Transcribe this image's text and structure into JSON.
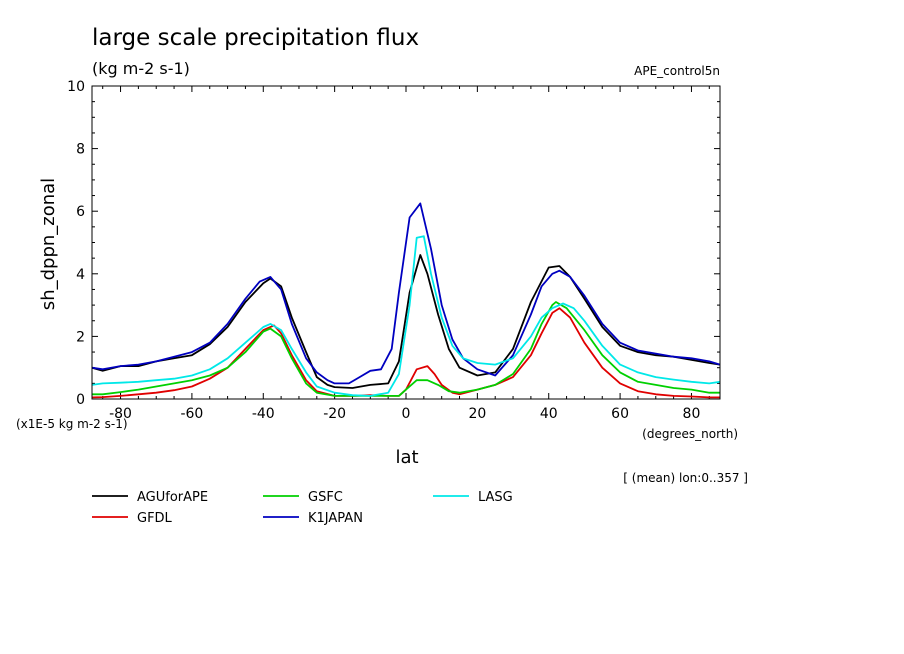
{
  "chart_data": {
    "type": "line",
    "title": "large scale precipitation flux",
    "subtitle": "(kg m-2 s-1)",
    "experiment": "APE_control5n",
    "ylabel": "sh_dppn_zonal",
    "y_scale_note": "(x1E-5 kg m-2 s-1)",
    "xlabel": "lat",
    "x_units": "(degrees_north)",
    "averaging_note": "[ (mean) lon:0..357 ]",
    "xlim": [
      -88,
      88
    ],
    "ylim": [
      0,
      10
    ],
    "xticks": [
      -80,
      -60,
      -40,
      -20,
      0,
      20,
      40,
      60,
      80
    ],
    "yticks": [
      0,
      2,
      4,
      6,
      8,
      10
    ],
    "x_tick_labels": [
      "-80",
      "-60",
      "-40",
      "-20",
      "0",
      "20",
      "40",
      "60",
      "80"
    ],
    "y_tick_labels": [
      "0",
      "2",
      "4",
      "6",
      "8",
      "10"
    ],
    "grid": false,
    "legend_position": "bottom",
    "series": [
      {
        "name": "AGUforAPE",
        "color": "#000000",
        "points": [
          [
            -88,
            1.0
          ],
          [
            -85,
            0.9
          ],
          [
            -80,
            1.05
          ],
          [
            -75,
            1.05
          ],
          [
            -70,
            1.2
          ],
          [
            -65,
            1.3
          ],
          [
            -60,
            1.4
          ],
          [
            -55,
            1.75
          ],
          [
            -50,
            2.3
          ],
          [
            -45,
            3.1
          ],
          [
            -40,
            3.7
          ],
          [
            -38,
            3.85
          ],
          [
            -35,
            3.6
          ],
          [
            -32,
            2.6
          ],
          [
            -28,
            1.5
          ],
          [
            -25,
            0.7
          ],
          [
            -22,
            0.45
          ],
          [
            -20,
            0.38
          ],
          [
            -15,
            0.35
          ],
          [
            -10,
            0.45
          ],
          [
            -5,
            0.5
          ],
          [
            -2,
            1.2
          ],
          [
            1,
            3.4
          ],
          [
            4,
            4.6
          ],
          [
            6,
            4.0
          ],
          [
            9,
            2.7
          ],
          [
            12,
            1.6
          ],
          [
            15,
            1.0
          ],
          [
            20,
            0.75
          ],
          [
            25,
            0.85
          ],
          [
            30,
            1.6
          ],
          [
            35,
            3.1
          ],
          [
            40,
            4.2
          ],
          [
            43,
            4.25
          ],
          [
            46,
            3.9
          ],
          [
            50,
            3.2
          ],
          [
            55,
            2.3
          ],
          [
            60,
            1.7
          ],
          [
            65,
            1.5
          ],
          [
            70,
            1.4
          ],
          [
            75,
            1.35
          ],
          [
            80,
            1.25
          ],
          [
            85,
            1.15
          ],
          [
            88,
            1.1
          ]
        ]
      },
      {
        "name": "GFDL",
        "color": "#e00000",
        "points": [
          [
            -88,
            0.05
          ],
          [
            -85,
            0.06
          ],
          [
            -80,
            0.1
          ],
          [
            -75,
            0.15
          ],
          [
            -70,
            0.2
          ],
          [
            -65,
            0.28
          ],
          [
            -60,
            0.4
          ],
          [
            -55,
            0.65
          ],
          [
            -50,
            1.0
          ],
          [
            -45,
            1.6
          ],
          [
            -40,
            2.2
          ],
          [
            -37,
            2.35
          ],
          [
            -35,
            2.1
          ],
          [
            -32,
            1.4
          ],
          [
            -28,
            0.6
          ],
          [
            -25,
            0.25
          ],
          [
            -20,
            0.1
          ],
          [
            -15,
            0.1
          ],
          [
            -10,
            0.12
          ],
          [
            -5,
            0.1
          ],
          [
            -2,
            0.1
          ],
          [
            0,
            0.3
          ],
          [
            3,
            0.95
          ],
          [
            6,
            1.05
          ],
          [
            8,
            0.8
          ],
          [
            10,
            0.45
          ],
          [
            13,
            0.2
          ],
          [
            15,
            0.15
          ],
          [
            20,
            0.3
          ],
          [
            25,
            0.45
          ],
          [
            30,
            0.7
          ],
          [
            35,
            1.4
          ],
          [
            38,
            2.1
          ],
          [
            41,
            2.75
          ],
          [
            43,
            2.9
          ],
          [
            46,
            2.6
          ],
          [
            50,
            1.8
          ],
          [
            55,
            1.0
          ],
          [
            60,
            0.5
          ],
          [
            65,
            0.25
          ],
          [
            70,
            0.15
          ],
          [
            75,
            0.1
          ],
          [
            80,
            0.08
          ],
          [
            85,
            0.05
          ],
          [
            88,
            0.05
          ]
        ]
      },
      {
        "name": "GSFC",
        "color": "#00d000",
        "points": [
          [
            -88,
            0.15
          ],
          [
            -85,
            0.15
          ],
          [
            -80,
            0.22
          ],
          [
            -75,
            0.3
          ],
          [
            -70,
            0.4
          ],
          [
            -65,
            0.5
          ],
          [
            -60,
            0.6
          ],
          [
            -55,
            0.75
          ],
          [
            -50,
            1.0
          ],
          [
            -45,
            1.5
          ],
          [
            -40,
            2.15
          ],
          [
            -38,
            2.25
          ],
          [
            -35,
            2.0
          ],
          [
            -32,
            1.3
          ],
          [
            -28,
            0.5
          ],
          [
            -25,
            0.2
          ],
          [
            -20,
            0.1
          ],
          [
            -15,
            0.1
          ],
          [
            -10,
            0.1
          ],
          [
            -5,
            0.1
          ],
          [
            -2,
            0.1
          ],
          [
            0,
            0.3
          ],
          [
            3,
            0.6
          ],
          [
            6,
            0.6
          ],
          [
            9,
            0.45
          ],
          [
            12,
            0.25
          ],
          [
            15,
            0.2
          ],
          [
            20,
            0.3
          ],
          [
            25,
            0.45
          ],
          [
            30,
            0.8
          ],
          [
            35,
            1.6
          ],
          [
            38,
            2.4
          ],
          [
            41,
            3.0
          ],
          [
            42,
            3.1
          ],
          [
            45,
            2.9
          ],
          [
            50,
            2.2
          ],
          [
            55,
            1.4
          ],
          [
            60,
            0.85
          ],
          [
            65,
            0.55
          ],
          [
            70,
            0.45
          ],
          [
            75,
            0.35
          ],
          [
            80,
            0.3
          ],
          [
            85,
            0.2
          ],
          [
            88,
            0.2
          ]
        ]
      },
      {
        "name": "K1JAPAN",
        "color": "#0000c0",
        "points": [
          [
            -88,
            1.0
          ],
          [
            -85,
            0.95
          ],
          [
            -80,
            1.05
          ],
          [
            -75,
            1.1
          ],
          [
            -70,
            1.2
          ],
          [
            -65,
            1.35
          ],
          [
            -60,
            1.5
          ],
          [
            -55,
            1.8
          ],
          [
            -50,
            2.4
          ],
          [
            -45,
            3.2
          ],
          [
            -41,
            3.75
          ],
          [
            -38,
            3.9
          ],
          [
            -35,
            3.5
          ],
          [
            -32,
            2.4
          ],
          [
            -28,
            1.3
          ],
          [
            -25,
            0.85
          ],
          [
            -22,
            0.6
          ],
          [
            -20,
            0.5
          ],
          [
            -16,
            0.5
          ],
          [
            -13,
            0.7
          ],
          [
            -10,
            0.9
          ],
          [
            -7,
            0.95
          ],
          [
            -4,
            1.6
          ],
          [
            -2,
            3.4
          ],
          [
            1,
            5.8
          ],
          [
            4,
            6.25
          ],
          [
            7,
            4.8
          ],
          [
            10,
            3.0
          ],
          [
            13,
            1.9
          ],
          [
            16,
            1.3
          ],
          [
            20,
            0.95
          ],
          [
            25,
            0.75
          ],
          [
            30,
            1.4
          ],
          [
            35,
            2.7
          ],
          [
            38,
            3.6
          ],
          [
            41,
            4.0
          ],
          [
            43,
            4.1
          ],
          [
            46,
            3.9
          ],
          [
            50,
            3.3
          ],
          [
            55,
            2.4
          ],
          [
            60,
            1.8
          ],
          [
            65,
            1.55
          ],
          [
            70,
            1.45
          ],
          [
            75,
            1.35
          ],
          [
            80,
            1.3
          ],
          [
            85,
            1.2
          ],
          [
            88,
            1.1
          ]
        ]
      },
      {
        "name": "LASG",
        "color": "#00e8e8",
        "points": [
          [
            -88,
            0.45
          ],
          [
            -85,
            0.5
          ],
          [
            -80,
            0.52
          ],
          [
            -75,
            0.55
          ],
          [
            -70,
            0.6
          ],
          [
            -65,
            0.65
          ],
          [
            -60,
            0.75
          ],
          [
            -55,
            0.95
          ],
          [
            -50,
            1.3
          ],
          [
            -45,
            1.8
          ],
          [
            -40,
            2.3
          ],
          [
            -38,
            2.4
          ],
          [
            -35,
            2.2
          ],
          [
            -32,
            1.6
          ],
          [
            -28,
            0.85
          ],
          [
            -25,
            0.4
          ],
          [
            -20,
            0.2
          ],
          [
            -15,
            0.12
          ],
          [
            -10,
            0.1
          ],
          [
            -5,
            0.2
          ],
          [
            -2,
            0.8
          ],
          [
            1,
            3.0
          ],
          [
            3,
            5.15
          ],
          [
            5,
            5.2
          ],
          [
            7,
            4.0
          ],
          [
            10,
            2.6
          ],
          [
            13,
            1.7
          ],
          [
            16,
            1.3
          ],
          [
            20,
            1.15
          ],
          [
            25,
            1.1
          ],
          [
            30,
            1.3
          ],
          [
            35,
            2.0
          ],
          [
            38,
            2.6
          ],
          [
            41,
            2.9
          ],
          [
            44,
            3.05
          ],
          [
            47,
            2.9
          ],
          [
            50,
            2.5
          ],
          [
            55,
            1.7
          ],
          [
            60,
            1.1
          ],
          [
            65,
            0.85
          ],
          [
            70,
            0.7
          ],
          [
            75,
            0.62
          ],
          [
            80,
            0.55
          ],
          [
            85,
            0.5
          ],
          [
            88,
            0.55
          ]
        ]
      }
    ]
  }
}
